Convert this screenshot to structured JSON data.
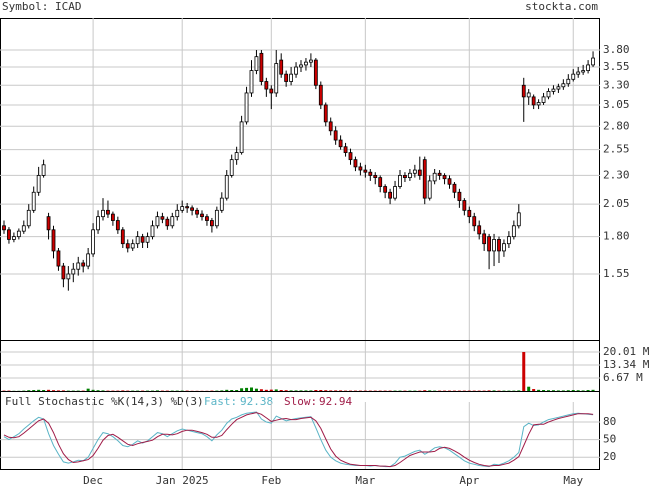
{
  "chart_data": {
    "type": "candlestick",
    "symbol_label": "Symbol: ICAD",
    "source": "stockta.com",
    "log_scale": true,
    "grid": true,
    "up_color": "#ffffff",
    "down_color": "#cc0000",
    "ylim": [
      1.19,
      4.32
    ],
    "yticks": [
      {
        "value": 3.8,
        "label": "3.80"
      },
      3.55,
      {
        "value": 3.3,
        "label": "3.30"
      },
      3.05,
      {
        "value": 2.8,
        "label": "2.80"
      },
      2.55,
      {
        "value": 2.3,
        "label": "2.30"
      },
      2.05,
      {
        "value": 1.8,
        "label": "1.80"
      },
      1.55
    ],
    "categories": [
      null,
      null,
      null,
      null,
      null,
      null,
      null,
      null,
      null,
      null,
      null,
      null,
      null,
      null,
      null,
      null,
      null,
      null,
      "Dec",
      null,
      null,
      null,
      null,
      null,
      null,
      null,
      null,
      null,
      null,
      null,
      null,
      null,
      null,
      null,
      null,
      null,
      "Jan 2025",
      null,
      null,
      null,
      null,
      null,
      null,
      null,
      null,
      null,
      null,
      null,
      null,
      null,
      null,
      null,
      null,
      null,
      "Feb",
      null,
      null,
      null,
      null,
      null,
      null,
      null,
      null,
      null,
      null,
      null,
      null,
      null,
      null,
      null,
      null,
      null,
      null,
      "Mar",
      null,
      null,
      null,
      null,
      null,
      null,
      null,
      null,
      null,
      null,
      null,
      null,
      null,
      null,
      null,
      null,
      null,
      null,
      null,
      null,
      "Apr",
      null,
      null,
      null,
      null,
      null,
      null,
      null,
      null,
      null,
      null,
      null,
      null,
      null,
      null,
      null,
      null,
      null,
      null,
      null,
      null,
      "May",
      null,
      null,
      null,
      null
    ],
    "ohlc": [
      [
        1.88,
        1.92,
        1.82,
        1.85
      ],
      [
        1.85,
        1.87,
        1.75,
        1.78
      ],
      [
        1.78,
        1.83,
        1.76,
        1.8
      ],
      [
        1.8,
        1.86,
        1.78,
        1.84
      ],
      [
        1.84,
        1.92,
        1.82,
        1.88
      ],
      [
        1.88,
        2.05,
        1.86,
        2.0
      ],
      [
        2.0,
        2.2,
        1.98,
        2.15
      ],
      [
        2.15,
        2.38,
        2.12,
        2.3
      ],
      [
        2.3,
        2.45,
        2.28,
        2.4
      ],
      [
        1.95,
        1.98,
        1.78,
        1.85
      ],
      [
        1.85,
        1.88,
        1.65,
        1.7
      ],
      [
        1.7,
        1.72,
        1.57,
        1.6
      ],
      [
        1.6,
        1.62,
        1.47,
        1.52
      ],
      [
        1.52,
        1.6,
        1.45,
        1.55
      ],
      [
        1.55,
        1.62,
        1.5,
        1.58
      ],
      [
        1.58,
        1.66,
        1.54,
        1.62
      ],
      [
        1.62,
        1.64,
        1.56,
        1.6
      ],
      [
        1.6,
        1.72,
        1.58,
        1.68
      ],
      [
        1.68,
        1.9,
        1.66,
        1.85
      ],
      [
        1.85,
        2.0,
        1.82,
        1.95
      ],
      [
        1.95,
        2.1,
        1.92,
        2.0
      ],
      [
        2.0,
        2.08,
        1.94,
        1.97
      ],
      [
        1.97,
        1.99,
        1.88,
        1.92
      ],
      [
        1.92,
        1.95,
        1.82,
        1.85
      ],
      [
        1.85,
        1.87,
        1.72,
        1.75
      ],
      [
        1.75,
        1.78,
        1.69,
        1.72
      ],
      [
        1.72,
        1.78,
        1.7,
        1.75
      ],
      [
        1.75,
        1.84,
        1.72,
        1.8
      ],
      [
        1.8,
        1.82,
        1.72,
        1.76
      ],
      [
        1.76,
        1.83,
        1.72,
        1.8
      ],
      [
        1.8,
        1.92,
        1.78,
        1.88
      ],
      [
        1.88,
        1.99,
        1.86,
        1.95
      ],
      [
        1.95,
        1.98,
        1.9,
        1.93
      ],
      [
        1.93,
        1.95,
        1.85,
        1.88
      ],
      [
        1.88,
        1.98,
        1.86,
        1.95
      ],
      [
        1.95,
        2.05,
        1.92,
        2.0
      ],
      [
        2.0,
        2.08,
        1.98,
        2.03
      ],
      [
        2.03,
        2.06,
        1.98,
        2.02
      ],
      [
        2.02,
        2.04,
        1.96,
        2.0
      ],
      [
        2.0,
        2.02,
        1.94,
        1.97
      ],
      [
        1.97,
        2.0,
        1.92,
        1.95
      ],
      [
        1.95,
        1.97,
        1.88,
        1.92
      ],
      [
        1.92,
        1.94,
        1.83,
        1.88
      ],
      [
        1.88,
        2.03,
        1.86,
        2.0
      ],
      [
        2.0,
        2.15,
        1.98,
        2.1
      ],
      [
        2.1,
        2.35,
        2.08,
        2.3
      ],
      [
        2.3,
        2.5,
        2.28,
        2.45
      ],
      [
        2.45,
        2.58,
        2.4,
        2.52
      ],
      [
        2.52,
        2.92,
        2.5,
        2.85
      ],
      [
        2.85,
        3.28,
        2.82,
        3.2
      ],
      [
        3.2,
        3.65,
        3.15,
        3.5
      ],
      [
        3.5,
        3.8,
        3.45,
        3.7
      ],
      [
        3.75,
        3.8,
        3.3,
        3.35
      ],
      [
        3.35,
        3.4,
        3.15,
        3.25
      ],
      [
        3.25,
        3.3,
        3.0,
        3.2
      ],
      [
        3.2,
        3.8,
        3.15,
        3.6
      ],
      [
        3.65,
        3.75,
        3.4,
        3.45
      ],
      [
        3.45,
        3.5,
        3.28,
        3.35
      ],
      [
        3.35,
        3.55,
        3.3,
        3.45
      ],
      [
        3.45,
        3.62,
        3.4,
        3.55
      ],
      [
        3.55,
        3.65,
        3.48,
        3.58
      ],
      [
        3.58,
        3.68,
        3.5,
        3.62
      ],
      [
        3.62,
        3.75,
        3.55,
        3.65
      ],
      [
        3.65,
        3.68,
        3.25,
        3.3
      ],
      [
        3.3,
        3.35,
        3.0,
        3.05
      ],
      [
        3.05,
        3.08,
        2.8,
        2.85
      ],
      [
        2.85,
        2.9,
        2.7,
        2.75
      ],
      [
        2.75,
        2.8,
        2.6,
        2.65
      ],
      [
        2.65,
        2.7,
        2.55,
        2.58
      ],
      [
        2.58,
        2.62,
        2.48,
        2.52
      ],
      [
        2.52,
        2.56,
        2.4,
        2.45
      ],
      [
        2.45,
        2.48,
        2.34,
        2.38
      ],
      [
        2.38,
        2.42,
        2.3,
        2.35
      ],
      [
        2.35,
        2.4,
        2.28,
        2.33
      ],
      [
        2.33,
        2.36,
        2.25,
        2.3
      ],
      [
        2.3,
        2.33,
        2.22,
        2.28
      ],
      [
        2.28,
        2.3,
        2.15,
        2.2
      ],
      [
        2.2,
        2.22,
        2.1,
        2.15
      ],
      [
        2.15,
        2.18,
        2.05,
        2.1
      ],
      [
        2.1,
        2.25,
        2.08,
        2.2
      ],
      [
        2.2,
        2.35,
        2.18,
        2.3
      ],
      [
        2.3,
        2.33,
        2.24,
        2.28
      ],
      [
        2.28,
        2.36,
        2.25,
        2.32
      ],
      [
        2.32,
        2.4,
        2.28,
        2.35
      ],
      [
        2.35,
        2.48,
        2.26,
        2.3
      ],
      [
        2.45,
        2.48,
        2.05,
        2.1
      ],
      [
        2.1,
        2.3,
        2.08,
        2.25
      ],
      [
        2.25,
        2.36,
        2.22,
        2.32
      ],
      [
        2.32,
        2.35,
        2.26,
        2.3
      ],
      [
        2.3,
        2.32,
        2.22,
        2.27
      ],
      [
        2.27,
        2.3,
        2.18,
        2.22
      ],
      [
        2.22,
        2.24,
        2.1,
        2.15
      ],
      [
        2.15,
        2.18,
        2.02,
        2.08
      ],
      [
        2.08,
        2.1,
        1.96,
        2.0
      ],
      [
        2.0,
        2.03,
        1.9,
        1.95
      ],
      [
        1.95,
        1.98,
        1.84,
        1.88
      ],
      [
        1.88,
        1.92,
        1.78,
        1.82
      ],
      [
        1.82,
        1.85,
        1.7,
        1.75
      ],
      [
        1.8,
        1.82,
        1.58,
        1.7
      ],
      [
        1.7,
        1.82,
        1.6,
        1.78
      ],
      [
        1.78,
        1.8,
        1.62,
        1.7
      ],
      [
        1.7,
        1.78,
        1.66,
        1.75
      ],
      [
        1.75,
        1.84,
        1.72,
        1.8
      ],
      [
        1.8,
        1.92,
        1.78,
        1.88
      ],
      [
        1.88,
        2.05,
        1.86,
        1.98
      ],
      [
        3.3,
        3.4,
        2.85,
        3.15
      ],
      [
        3.15,
        3.25,
        3.05,
        3.2
      ],
      [
        3.15,
        3.18,
        3.0,
        3.05
      ],
      [
        3.05,
        3.12,
        3.0,
        3.08
      ],
      [
        3.08,
        3.2,
        3.05,
        3.15
      ],
      [
        3.15,
        3.26,
        3.12,
        3.22
      ],
      [
        3.22,
        3.3,
        3.18,
        3.25
      ],
      [
        3.25,
        3.32,
        3.2,
        3.28
      ],
      [
        3.28,
        3.38,
        3.24,
        3.32
      ],
      [
        3.32,
        3.45,
        3.28,
        3.38
      ],
      [
        3.38,
        3.52,
        3.35,
        3.45
      ],
      [
        3.45,
        3.55,
        3.4,
        3.48
      ],
      [
        3.48,
        3.58,
        3.44,
        3.5
      ],
      [
        3.5,
        3.65,
        3.46,
        3.58
      ],
      [
        3.58,
        3.78,
        3.55,
        3.68
      ]
    ],
    "volume": {
      "ylim": [
        0,
        25.65
      ],
      "yticks": [
        {
          "value": 20.01,
          "label": "20.01 M"
        },
        {
          "value": 13.34,
          "label": "13.34 M"
        },
        {
          "value": 6.67,
          "label": "6.67 M"
        }
      ],
      "up_color": "#008000",
      "down_color": "#cc0000",
      "values": [
        0.2,
        0.2,
        0.1,
        0.1,
        0.2,
        0.4,
        0.5,
        0.6,
        0.5,
        0.6,
        0.4,
        0.3,
        0.3,
        0.2,
        0.2,
        0.2,
        0.2,
        1.2,
        0.6,
        0.4,
        0.3,
        0.2,
        0.2,
        0.2,
        0.3,
        0.2,
        0.2,
        0.2,
        0.2,
        0.2,
        0.2,
        0.3,
        0.2,
        0.2,
        0.2,
        0.2,
        0.2,
        0.2,
        0.1,
        0.1,
        0.1,
        0.1,
        0.2,
        0.2,
        0.3,
        0.6,
        0.5,
        0.5,
        1.4,
        1.6,
        1.8,
        1.2,
        0.9,
        0.6,
        0.7,
        0.8,
        0.5,
        0.4,
        0.3,
        0.3,
        0.3,
        0.3,
        0.3,
        0.5,
        0.5,
        0.4,
        0.3,
        0.3,
        0.3,
        0.2,
        0.2,
        0.2,
        0.2,
        0.2,
        0.2,
        0.2,
        0.2,
        0.2,
        0.2,
        0.2,
        0.2,
        0.2,
        0.2,
        0.2,
        0.2,
        0.4,
        0.3,
        0.2,
        0.2,
        0.2,
        0.2,
        0.2,
        0.2,
        0.2,
        0.2,
        0.2,
        0.2,
        0.2,
        0.3,
        0.3,
        0.2,
        0.2,
        0.2,
        0.2,
        0.3,
        20.0,
        2.2,
        1.0,
        0.6,
        0.5,
        0.4,
        0.4,
        0.3,
        0.3,
        0.4,
        0.5,
        0.4,
        0.3,
        0.5,
        0.6
      ]
    },
    "stochastic": {
      "title": "Full Stochastic %K(14,3) %D(3)",
      "fast_label": "Fast:",
      "slow_label": "Slow:",
      "fast_color": "#5ab4c6",
      "slow_color": "#a01c48",
      "ylim": [
        0,
        131
      ],
      "yticks": [
        80,
        50,
        20
      ],
      "fast": [
        55,
        50,
        55,
        60,
        68,
        75,
        82,
        88,
        85,
        60,
        40,
        25,
        12,
        10,
        12,
        15,
        14,
        20,
        35,
        50,
        62,
        60,
        55,
        48,
        40,
        38,
        42,
        48,
        44,
        48,
        55,
        62,
        60,
        55,
        60,
        65,
        68,
        66,
        64,
        62,
        60,
        55,
        48,
        58,
        66,
        78,
        85,
        88,
        92,
        95,
        96,
        97,
        85,
        80,
        78,
        90,
        86,
        82,
        84,
        86,
        87,
        88,
        89,
        70,
        50,
        32,
        20,
        14,
        10,
        8,
        7,
        6,
        6,
        6,
        5,
        6,
        5,
        4,
        4,
        10,
        20,
        22,
        26,
        30,
        32,
        25,
        30,
        36,
        38,
        36,
        32,
        26,
        20,
        14,
        10,
        8,
        6,
        5,
        4,
        8,
        7,
        10,
        14,
        20,
        28,
        72,
        78,
        74,
        75,
        80,
        84,
        86,
        88,
        90,
        92,
        94,
        95,
        94,
        93,
        92.38
      ],
      "slow": [
        58,
        54,
        53,
        55,
        61,
        68,
        75,
        82,
        85,
        78,
        62,
        42,
        26,
        16,
        11,
        12,
        14,
        16,
        23,
        35,
        49,
        57,
        59,
        54,
        48,
        42,
        40,
        43,
        45,
        47,
        49,
        55,
        59,
        59,
        58,
        60,
        64,
        66,
        66,
        64,
        62,
        59,
        54,
        54,
        57,
        67,
        76,
        84,
        88,
        92,
        94,
        96,
        93,
        87,
        81,
        83,
        85,
        86,
        84,
        84,
        86,
        87,
        88,
        82,
        69,
        51,
        34,
        22,
        15,
        11,
        8,
        7,
        6,
        6,
        6,
        6,
        5,
        5,
        4,
        6,
        11,
        17,
        23,
        26,
        29,
        29,
        29,
        30,
        35,
        37,
        35,
        31,
        26,
        20,
        15,
        11,
        8,
        6,
        5,
        6,
        6,
        8,
        10,
        15,
        21,
        40,
        59,
        75,
        76,
        76,
        80,
        83,
        86,
        88,
        90,
        92,
        94,
        94,
        94,
        92.94
      ]
    }
  }
}
